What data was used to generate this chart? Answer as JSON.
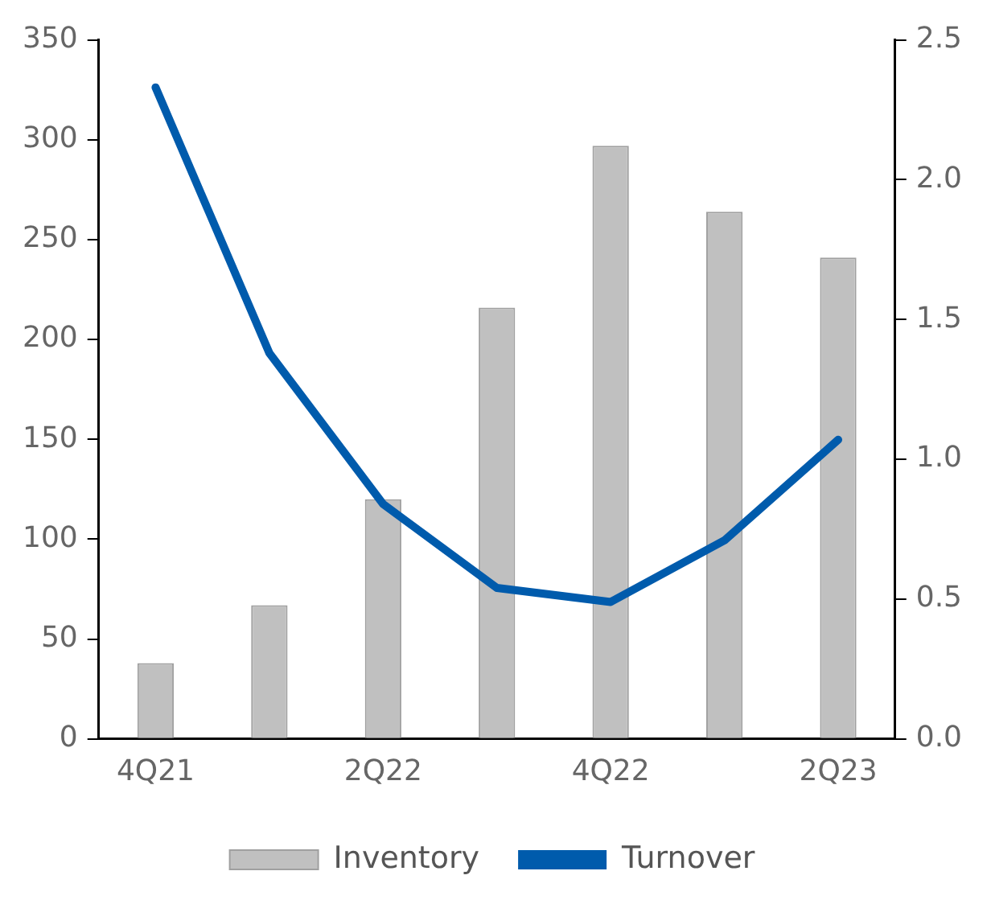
{
  "chart_data": {
    "type": "bar",
    "categories": [
      "4Q21",
      null,
      "2Q22",
      null,
      "4Q22",
      null,
      "2Q23"
    ],
    "series": [
      {
        "name": "Inventory",
        "color": "#c0c0c0",
        "values": [
          38,
          67,
          120,
          216,
          297,
          264,
          241
        ]
      },
      {
        "name": "Turnover",
        "type": "line",
        "axis": "y2",
        "color": "#005bac",
        "values": [
          2.33,
          1.38,
          0.84,
          0.54,
          0.49,
          0.71,
          1.07
        ]
      }
    ],
    "ylim": [
      0,
      350
    ],
    "yticks": [
      0,
      50,
      100,
      150,
      200,
      250,
      300,
      350
    ],
    "y2lim": [
      0,
      2.5
    ],
    "y2ticks": [
      {
        "value": 0,
        "label": "0.0"
      },
      {
        "value": 0.5,
        "label": "0.5"
      },
      {
        "value": 1,
        "label": "1.0"
      },
      {
        "value": 1.5,
        "label": "1.5"
      },
      {
        "value": 2,
        "label": "2.0"
      },
      {
        "value": 2.5,
        "label": "2.5"
      }
    ],
    "grid": false,
    "legend": "bottom",
    "marker": "none"
  }
}
